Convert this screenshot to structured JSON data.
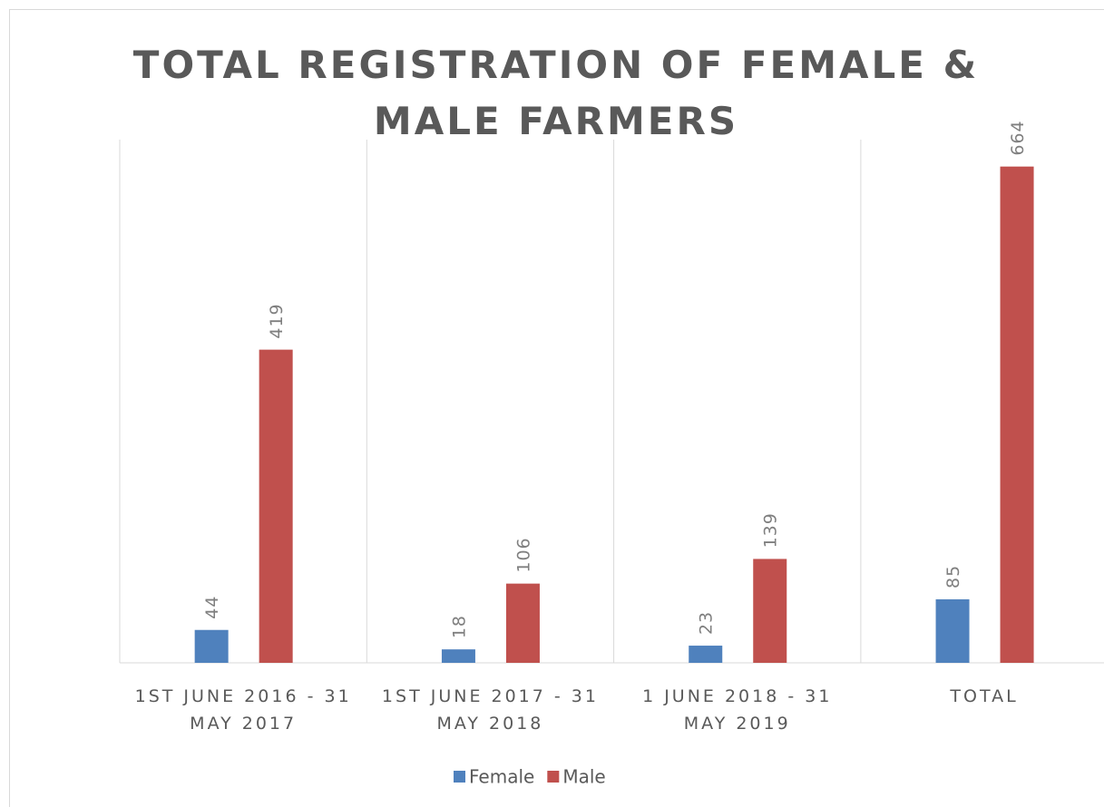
{
  "chart_data": {
    "type": "bar",
    "title": [
      "TOTAL REGISTRATION OF FEMALE &",
      "MALE FARMERS"
    ],
    "categories": [
      "1ST JUNE 2016 - 31 MAY 2017",
      "1ST JUNE 2017 - 31 MAY 2018",
      "1 JUNE 2018 - 31 MAY 2019",
      "TOTAL"
    ],
    "series": [
      {
        "name": "Female",
        "color": "#4f81bd",
        "values": [
          44,
          18,
          23,
          85
        ]
      },
      {
        "name": "Male",
        "color": "#c0504d",
        "values": [
          419,
          106,
          139,
          664
        ]
      }
    ],
    "ylim": [
      0,
      700
    ]
  }
}
